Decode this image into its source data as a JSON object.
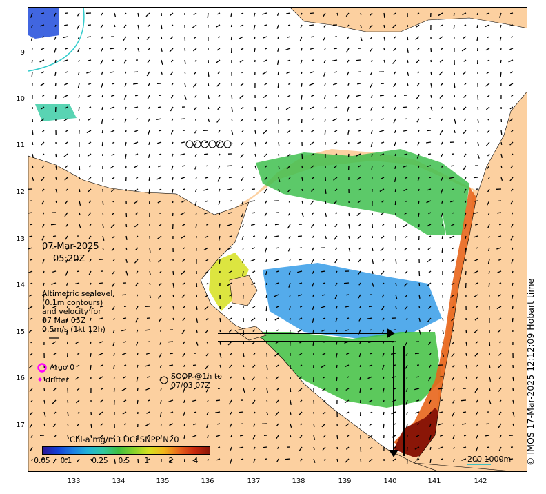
{
  "map": {
    "date": "07-Mar-2025",
    "time": "05:20Z",
    "legend_lines": [
      "Altimetric sealevel",
      "(0.1m contours)",
      "and velocity for",
      "07 Mar 05Z",
      "0.5m/s (1kt 12h)"
    ],
    "argo_label": "Argo 0",
    "drifter_label": "drifter",
    "soop_lines": [
      "SOOP @1h to",
      "07/03 07Z"
    ],
    "colorbar_title": "Chl-a mg/m3 OCi SNPP N20",
    "colorbar_ticks": [
      "0.05",
      "0.1",
      "0.25",
      "0.5",
      "1",
      "2",
      "4"
    ],
    "scale_label": "200  1000m",
    "credit": "© IMOS 17-Mar-2025 12:12:09 Hobart time",
    "lat_ticks": [
      "9",
      "10",
      "11",
      "12",
      "13",
      "14",
      "15",
      "16",
      "17"
    ],
    "lon_ticks": [
      "133",
      "134",
      "135",
      "136",
      "137",
      "138",
      "139",
      "140",
      "141",
      "142"
    ],
    "colors": {
      "land": "#fcd0a0",
      "argo": "#ff00ff",
      "drifter": "#ff00ff",
      "contour": "#33cccc"
    }
  }
}
